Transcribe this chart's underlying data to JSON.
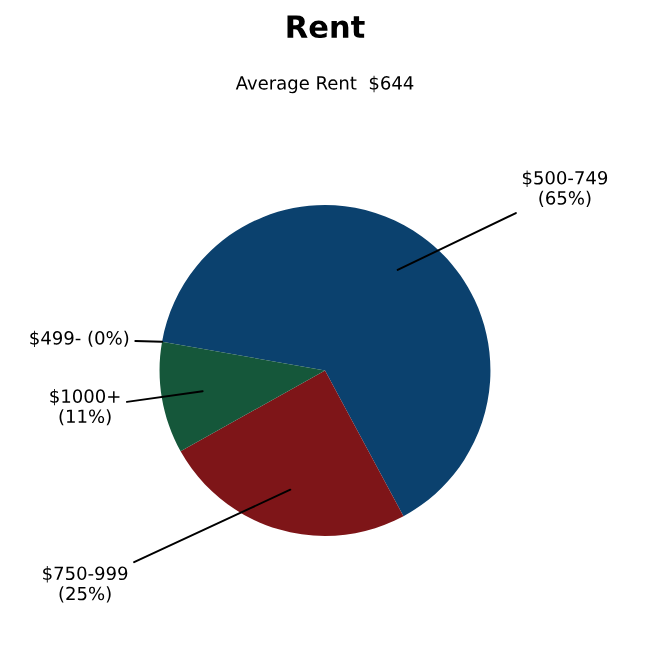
{
  "chart_data": {
    "type": "pie",
    "title": "Rent",
    "subtitle": "Average Rent  $644",
    "categories": [
      "$500-749",
      "$750-999",
      "$1000+",
      "$499-"
    ],
    "values": [
      65,
      25,
      11,
      0
    ],
    "value_labels": [
      "(65%)",
      "(25%)",
      "(11%)",
      "(0%)"
    ],
    "colors": [
      "#0b416e",
      "#7e1518",
      "#15573a",
      "#2a6e8a"
    ]
  }
}
